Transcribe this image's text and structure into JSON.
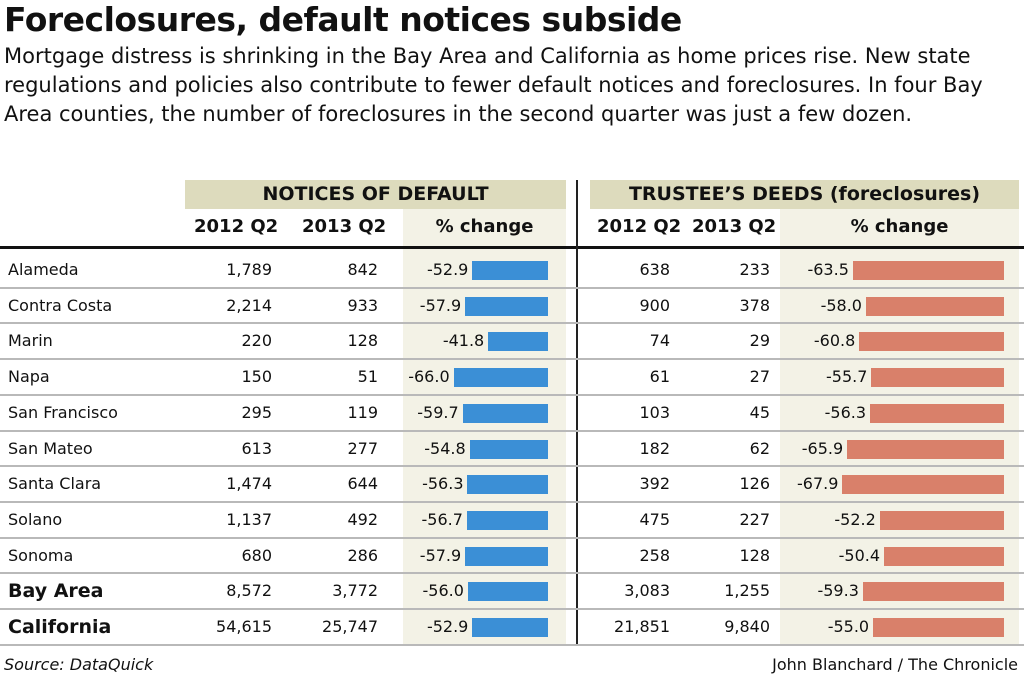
{
  "title": "Foreclosures, default notices subside",
  "subtitle": "Mortgage distress is shrinking in the Bay Area and  California as home prices rise. New state regulations and  policies also contribute to fewer default notices and foreclosures. In four Bay Area counties, the number of foreclosures in the second quarter was just a few dozen.",
  "source": "Source: DataQuick",
  "credit": "John Blanchard / The Chronicle",
  "colors": {
    "notices_bar": "#3b8fd6",
    "deeds_bar": "#d9806a",
    "header_band": "#dddbbd",
    "change_shade": "#f3f2e6"
  },
  "chart_data": {
    "type": "table",
    "groups": [
      {
        "title": "NOTICES OF DEFAULT",
        "columns": [
          "2012 Q2",
          "2013 Q2",
          "% change"
        ]
      },
      {
        "title": "TRUSTEE’S DEEDS (foreclosures)",
        "columns": [
          "2012 Q2",
          "2013 Q2",
          "% change"
        ]
      }
    ],
    "rows": [
      {
        "name": "Alameda",
        "bold": false,
        "nod": [
          "1,789",
          "842",
          -52.9
        ],
        "td": [
          "638",
          "233",
          -63.5
        ]
      },
      {
        "name": "Contra Costa",
        "bold": false,
        "nod": [
          "2,214",
          "933",
          -57.9
        ],
        "td": [
          "900",
          "378",
          -58.0
        ]
      },
      {
        "name": "Marin",
        "bold": false,
        "nod": [
          "220",
          "128",
          -41.8
        ],
        "td": [
          "74",
          "29",
          -60.8
        ]
      },
      {
        "name": "Napa",
        "bold": false,
        "nod": [
          "150",
          "51",
          -66.0
        ],
        "td": [
          "61",
          "27",
          -55.7
        ]
      },
      {
        "name": "San Francisco",
        "bold": false,
        "nod": [
          "295",
          "119",
          -59.7
        ],
        "td": [
          "103",
          "45",
          -56.3
        ]
      },
      {
        "name": "San Mateo",
        "bold": false,
        "nod": [
          "613",
          "277",
          -54.8
        ],
        "td": [
          "182",
          "62",
          -65.9
        ]
      },
      {
        "name": "Santa Clara",
        "bold": false,
        "nod": [
          "1,474",
          "644",
          -56.3
        ],
        "td": [
          "392",
          "126",
          -67.9
        ]
      },
      {
        "name": "Solano",
        "bold": false,
        "nod": [
          "1,137",
          "492",
          -56.7
        ],
        "td": [
          "475",
          "227",
          -52.2
        ]
      },
      {
        "name": "Sonoma",
        "bold": false,
        "nod": [
          "680",
          "286",
          -57.9
        ],
        "td": [
          "258",
          "128",
          -50.4
        ]
      },
      {
        "name": "Bay Area",
        "bold": true,
        "nod": [
          "8,572",
          "3,772",
          -56.0
        ],
        "td": [
          "3,083",
          "1,255",
          -59.3
        ]
      },
      {
        "name": "California",
        "bold": true,
        "nod": [
          "54,615",
          "25,747",
          -52.9
        ],
        "td": [
          "21,851",
          "9,840",
          -55.0
        ]
      }
    ]
  }
}
